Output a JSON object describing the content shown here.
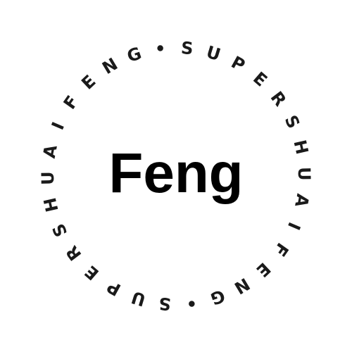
{
  "logo": {
    "center_text": "Feng",
    "ring_text": "SUPERSHUAIFENG",
    "separator": "•",
    "colors": {
      "background": "#ffffff",
      "text": "#000000",
      "ring": "#1a1a1a"
    }
  }
}
